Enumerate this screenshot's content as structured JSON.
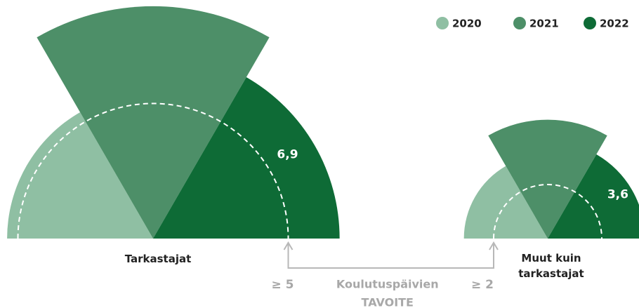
{
  "chart_data": {
    "type": "polar-area",
    "categories": [
      "Tarkastajat",
      "Muut kuin tarkastajat"
    ],
    "series": [
      {
        "name": "2020",
        "color": "#8fbfa3",
        "values": [
          5.4,
          3.1
        ]
      },
      {
        "name": "2021",
        "color": "#4d8f68",
        "values": [
          8.6,
          4.4
        ]
      },
      {
        "name": "2022",
        "color": "#0e6b36",
        "values": [
          6.9,
          3.6
        ],
        "value_labels": [
          "6,9",
          "3,6"
        ]
      }
    ],
    "target": {
      "values": [
        5,
        2
      ],
      "value_labels": [
        "≥ 5",
        "≥ 2"
      ],
      "label": [
        "Koulutuspäivien",
        "TAVOITE"
      ]
    },
    "legend": "top-right"
  }
}
